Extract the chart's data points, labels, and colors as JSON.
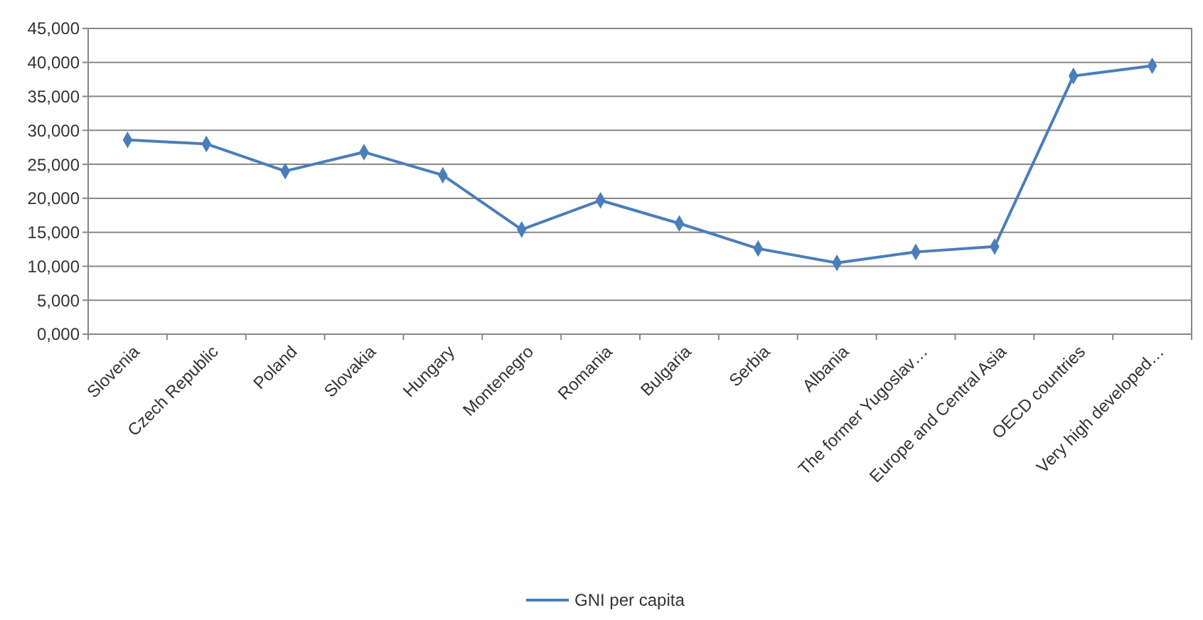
{
  "chart_data": {
    "type": "line",
    "categories": [
      "Slovenia",
      "Czech Republic",
      "Poland",
      "Slovakia",
      "Hungary",
      "Montenegro",
      "Romania",
      "Bulgaria",
      "Serbia",
      "Albania",
      "The former Yugoslav…",
      "Europe and Central Asia",
      "OECD countries",
      "Very high developed…"
    ],
    "series": [
      {
        "name": "GNI per capita",
        "color": "#4a7ebb",
        "values": [
          28600,
          28000,
          24000,
          26800,
          23400,
          15400,
          19700,
          16300,
          12600,
          10500,
          12100,
          12900,
          38000,
          39500
        ]
      }
    ],
    "ylim": [
      0,
      45000
    ],
    "yticks": [
      {
        "value": 0,
        "label": "0,000"
      },
      {
        "value": 5000,
        "label": "5,000"
      },
      {
        "value": 10000,
        "label": "10,000"
      },
      {
        "value": 15000,
        "label": "15,000"
      },
      {
        "value": 20000,
        "label": "20,000"
      },
      {
        "value": 25000,
        "label": "25,000"
      },
      {
        "value": 30000,
        "label": "30,000"
      },
      {
        "value": 35000,
        "label": "35,000"
      },
      {
        "value": 40000,
        "label": "40,000"
      },
      {
        "value": 45000,
        "label": "45,000"
      }
    ],
    "grid": "y",
    "legend": "bottom",
    "marker": "diamond",
    "line_style": "solid"
  }
}
